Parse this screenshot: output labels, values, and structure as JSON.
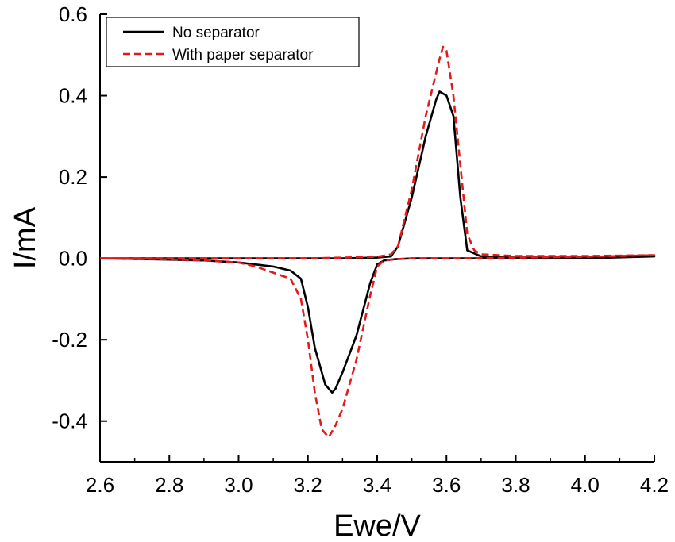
{
  "chart_data": {
    "type": "line",
    "xlabel": "Ewe/V",
    "ylabel": "I/mA",
    "xlim": [
      2.6,
      4.2
    ],
    "ylim": [
      -0.5,
      0.6
    ],
    "x_ticks": [
      "2.6",
      "2.8",
      "3.0",
      "3.2",
      "3.4",
      "3.6",
      "3.8",
      "4.0",
      "4.2"
    ],
    "y_ticks": [
      "-0.4",
      "-0.2",
      "0.0",
      "0.2",
      "0.4",
      "0.6"
    ],
    "legend_position": "top-left",
    "grid": false,
    "series": [
      {
        "name": "No separator",
        "color": "#000000",
        "style": "solid",
        "x": [
          2.6,
          2.8,
          3.0,
          3.1,
          3.2,
          3.3,
          3.4,
          3.44,
          3.46,
          3.5,
          3.54,
          3.57,
          3.58,
          3.6,
          3.62,
          3.64,
          3.66,
          3.7,
          3.8,
          4.0,
          4.2,
          4.2,
          4.0,
          3.8,
          3.6,
          3.5,
          3.45,
          3.42,
          3.4,
          3.38,
          3.34,
          3.3,
          3.28,
          3.27,
          3.25,
          3.22,
          3.2,
          3.18,
          3.15,
          3.1,
          3.05,
          3.0,
          2.9,
          2.8,
          2.6
        ],
        "y": [
          0.0,
          0.0,
          0.0,
          0.0,
          0.0,
          0.0,
          0.002,
          0.005,
          0.03,
          0.15,
          0.3,
          0.39,
          0.41,
          0.4,
          0.35,
          0.15,
          0.02,
          0.005,
          0.002,
          0.003,
          0.005,
          0.005,
          0.0,
          0.0,
          0.0,
          0.0,
          -0.002,
          -0.005,
          -0.015,
          -0.06,
          -0.19,
          -0.28,
          -0.32,
          -0.33,
          -0.31,
          -0.22,
          -0.12,
          -0.05,
          -0.03,
          -0.02,
          -0.015,
          -0.01,
          -0.005,
          -0.003,
          0.0
        ]
      },
      {
        "name": "With paper separator",
        "color": "#e31a1c",
        "style": "dashed",
        "x": [
          2.6,
          2.8,
          3.0,
          3.2,
          3.3,
          3.4,
          3.44,
          3.46,
          3.5,
          3.54,
          3.58,
          3.59,
          3.6,
          3.62,
          3.64,
          3.66,
          3.68,
          3.7,
          3.8,
          4.0,
          4.2,
          4.2,
          4.0,
          3.8,
          3.6,
          3.5,
          3.45,
          3.42,
          3.4,
          3.38,
          3.34,
          3.3,
          3.28,
          3.26,
          3.24,
          3.22,
          3.2,
          3.18,
          3.15,
          3.1,
          3.05,
          3.0,
          2.9,
          2.8,
          2.6
        ],
        "y": [
          0.0,
          0.0,
          0.0,
          0.0,
          0.002,
          0.004,
          0.01,
          0.03,
          0.17,
          0.35,
          0.49,
          0.52,
          0.51,
          0.4,
          0.23,
          0.06,
          0.02,
          0.01,
          0.006,
          0.006,
          0.008,
          0.008,
          0.004,
          0.002,
          0.0,
          0.0,
          -0.002,
          -0.005,
          -0.02,
          -0.09,
          -0.25,
          -0.37,
          -0.41,
          -0.44,
          -0.42,
          -0.33,
          -0.2,
          -0.1,
          -0.05,
          -0.035,
          -0.02,
          -0.01,
          -0.005,
          -0.002,
          0.0
        ]
      }
    ]
  }
}
